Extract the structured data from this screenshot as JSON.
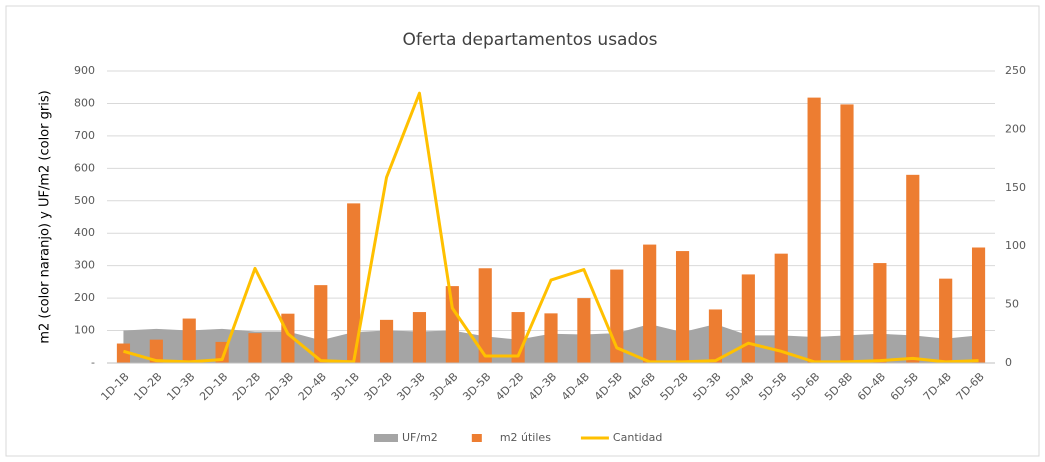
{
  "chart_data": {
    "type": "combo",
    "title": "Oferta departamentos usados",
    "y_label": "m2 (color naranjo) y UF/m2 (color gris)",
    "categories": [
      "1D-1B",
      "1D-2B",
      "1D-3B",
      "2D-1B",
      "2D-2B",
      "2D-3B",
      "2D-4B",
      "3D-1B",
      "3D-2B",
      "3D-3B",
      "3D-4B",
      "3D-5B",
      "4D-2B",
      "4D-3B",
      "4D-4B",
      "4D-5B",
      "4D-6B",
      "5D-2B",
      "5D-3B",
      "5D-4B",
      "5D-5B",
      "5D-6B",
      "5D-8B",
      "6D-4B",
      "6D-5B",
      "7D-4B",
      "7D-6B"
    ],
    "series": [
      {
        "name": "UF/m2",
        "type": "area",
        "color": "#a5a5a5",
        "values": [
          100,
          105,
          100,
          105,
          97,
          97,
          70,
          95,
          100,
          97,
          100,
          82,
          72,
          90,
          88,
          92,
          120,
          95,
          120,
          85,
          85,
          80,
          85,
          90,
          85,
          75,
          85
        ]
      },
      {
        "name": "m2 útiles",
        "type": "bar",
        "color": "#ed7d31",
        "values": [
          60,
          72,
          137,
          65,
          92,
          152,
          240,
          492,
          133,
          157,
          237,
          292,
          157,
          153,
          200,
          288,
          365,
          345,
          165,
          273,
          337,
          818,
          797,
          308,
          580,
          260,
          356
        ]
      },
      {
        "name": "Cantidad",
        "type": "line",
        "color": "#ffc000",
        "axis": "y2",
        "values": [
          10,
          2,
          1,
          3,
          81,
          25,
          2,
          1,
          159,
          231,
          47,
          6,
          6,
          71,
          80,
          13,
          1,
          1,
          2,
          17,
          10,
          1,
          1,
          2,
          4,
          1,
          2
        ]
      }
    ],
    "ylim": [
      0,
      900
    ],
    "yticks": [
      {
        "value": 0,
        "label": "-"
      },
      100,
      200,
      300,
      400,
      500,
      600,
      700,
      800,
      900
    ],
    "y2lim": [
      0,
      250
    ],
    "y2ticks": [
      0,
      50,
      100,
      150,
      200,
      250
    ],
    "grid": true,
    "legend": "bottom"
  }
}
